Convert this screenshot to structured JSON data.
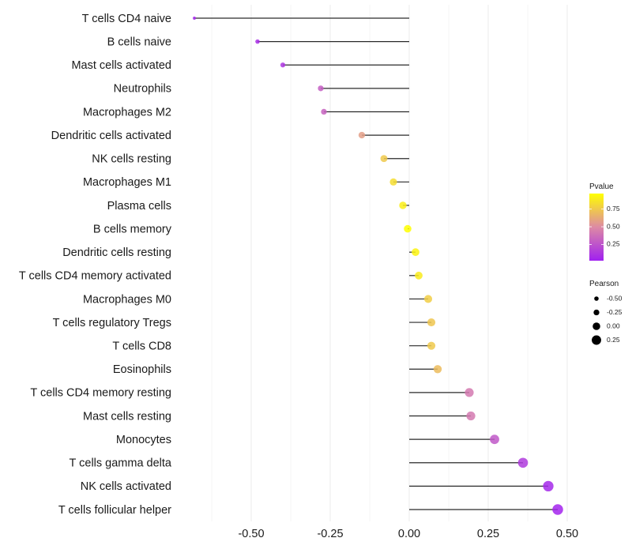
{
  "chart_data": {
    "type": "lollipop",
    "title": "",
    "xlabel": "",
    "ylabel": "",
    "xlim": [
      -0.7,
      0.5
    ],
    "x_ticks": [
      -0.5,
      -0.25,
      0.0,
      0.25,
      0.5
    ],
    "x_tick_labels": [
      "-0.50",
      "-0.25",
      "0.00",
      "0.25",
      "0.50"
    ],
    "grid": true,
    "categories": [
      "T cells CD4 naive",
      "B cells naive",
      "Mast cells activated",
      "Neutrophils",
      "Macrophages M2",
      "Dendritic cells activated",
      "NK cells resting",
      "Macrophages M1",
      "Plasma cells",
      "B cells memory",
      "Dendritic cells resting",
      "T cells CD4 memory activated",
      "Macrophages M0",
      "T cells regulatory  Tregs ",
      "T cells CD8",
      "Eosinophils",
      "T cells CD4 memory resting",
      "Mast cells resting",
      "Monocytes",
      "T cells gamma delta",
      "NK cells activated",
      "T cells follicular helper"
    ],
    "series": [
      {
        "name": "Pearson",
        "values": [
          -0.68,
          -0.48,
          -0.4,
          -0.28,
          -0.27,
          -0.15,
          -0.08,
          -0.05,
          -0.02,
          -0.005,
          0.02,
          0.03,
          0.06,
          0.07,
          0.07,
          0.09,
          0.19,
          0.195,
          0.27,
          0.36,
          0.44,
          0.47
        ]
      },
      {
        "name": "Pvalue",
        "values": [
          0.05,
          0.08,
          0.12,
          0.3,
          0.32,
          0.58,
          0.75,
          0.83,
          0.9,
          0.97,
          0.92,
          0.89,
          0.77,
          0.74,
          0.75,
          0.7,
          0.42,
          0.42,
          0.27,
          0.14,
          0.06,
          0.04
        ]
      }
    ],
    "legend": {
      "placement": "right",
      "color": {
        "title": "Pvalue",
        "range": [
          0.02,
          0.97
        ],
        "ticks": [
          0.25,
          0.5,
          0.75
        ],
        "tick_labels": [
          "0.25",
          "0.50",
          "0.75"
        ],
        "low_color": "#a020f0",
        "mid_color": "#dd8aa4",
        "high_color": "#ffff00"
      },
      "size": {
        "title": "Pearson",
        "values": [
          -0.5,
          -0.25,
          0.0,
          0.25
        ],
        "labels": [
          "-0.50",
          "-0.25",
          "0.00",
          "0.25"
        ]
      }
    }
  }
}
